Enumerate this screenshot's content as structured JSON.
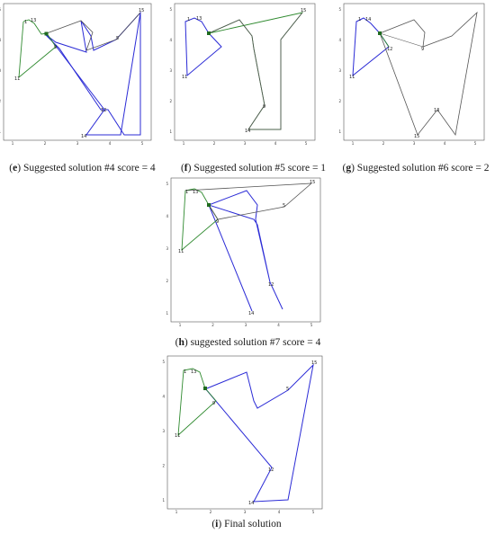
{
  "figure": {
    "panels": [
      {
        "id": "e",
        "letter": "e",
        "caption": "Suggested solution #4 score = 4",
        "axis_ticks": {
          "x": [
            "1",
            "2",
            "3",
            "4",
            "5"
          ],
          "y": [
            "1",
            "2",
            "3",
            "4",
            "5"
          ]
        },
        "point_labels": [
          "1",
          "5",
          "9",
          "11",
          "12",
          "13",
          "14",
          "15"
        ]
      },
      {
        "id": "f",
        "letter": "f",
        "caption": "Suggested solution #5 score = 1",
        "axis_ticks": {
          "x": [
            "1",
            "2",
            "3",
            "4",
            "5"
          ],
          "y": [
            "1",
            "2",
            "3",
            "4",
            "5"
          ]
        },
        "point_labels": [
          "1",
          "9",
          "11",
          "13",
          "14",
          "15"
        ]
      },
      {
        "id": "g",
        "letter": "g",
        "caption": "Suggested solution #6 score = 2",
        "axis_ticks": {
          "x": [
            "1",
            "2",
            "3",
            "4",
            "5"
          ],
          "y": [
            "1",
            "2",
            "3",
            "4",
            "5"
          ]
        },
        "point_labels": [
          "1",
          "9",
          "11",
          "12",
          "13",
          "14",
          "15"
        ]
      },
      {
        "id": "h",
        "letter": "h",
        "caption": "suggested solution #7 score = 4",
        "axis_ticks": {
          "x": [
            "1",
            "2",
            "3",
            "4",
            "5"
          ],
          "y": [
            "1",
            "2",
            "3",
            "4",
            "5"
          ]
        },
        "point_labels": [
          "1",
          "5",
          "9",
          "11",
          "12",
          "13",
          "14",
          "15"
        ]
      },
      {
        "id": "i",
        "letter": "i",
        "caption": "Final solution",
        "axis_ticks": {
          "x": [
            "1",
            "2",
            "3",
            "4",
            "5"
          ],
          "y": [
            "1",
            "2",
            "3",
            "4",
            "5"
          ]
        },
        "point_labels": [
          "1",
          "5",
          "9",
          "11",
          "12",
          "13",
          "14",
          "15"
        ]
      }
    ]
  },
  "colors": {
    "route_a": "#2b2bd6",
    "route_b": "#2f8a2f",
    "route_c": "#555555",
    "depot": "#1f6b1f"
  }
}
